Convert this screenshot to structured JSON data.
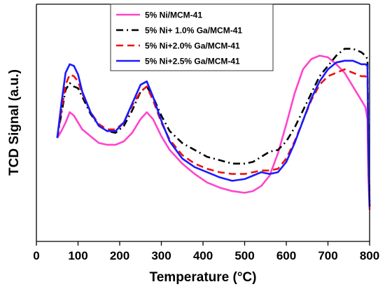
{
  "chart_data": {
    "type": "line",
    "xlabel": "Temperature (°C)",
    "ylabel": "TCD Signal (a.u.)",
    "xlim": [
      0,
      800
    ],
    "xticks": [
      0,
      100,
      200,
      300,
      400,
      500,
      600,
      700,
      800
    ],
    "ylim": [
      0,
      1
    ],
    "yticks_labeled": false,
    "grid": false,
    "legend_position": "top-center",
    "series": [
      {
        "name": "5% Ni/MCM-41",
        "color": "#ff44cc",
        "dash": "solid",
        "x": [
          50,
          60,
          70,
          80,
          90,
          100,
          110,
          130,
          150,
          170,
          190,
          210,
          230,
          250,
          265,
          280,
          300,
          320,
          350,
          380,
          410,
          440,
          470,
          500,
          520,
          540,
          560,
          580,
          600,
          620,
          640,
          660,
          680,
          700,
          720,
          740,
          760,
          780,
          790,
          795,
          797,
          800
        ],
        "y": [
          0.42,
          0.46,
          0.51,
          0.57,
          0.55,
          0.51,
          0.47,
          0.43,
          0.39,
          0.38,
          0.38,
          0.4,
          0.45,
          0.53,
          0.57,
          0.53,
          0.43,
          0.35,
          0.27,
          0.21,
          0.16,
          0.13,
          0.11,
          0.1,
          0.11,
          0.14,
          0.2,
          0.33,
          0.5,
          0.68,
          0.82,
          0.88,
          0.9,
          0.89,
          0.85,
          0.8,
          0.72,
          0.64,
          0.6,
          0.53,
          0.2,
          0.0
        ]
      },
      {
        "name": "5% Ni+ 1.0% Ga/MCM-41",
        "color": "#000000",
        "dash": "dashdot",
        "x": [
          50,
          60,
          70,
          80,
          90,
          100,
          110,
          130,
          150,
          170,
          190,
          210,
          230,
          250,
          265,
          280,
          300,
          320,
          350,
          380,
          410,
          440,
          470,
          500,
          520,
          540,
          560,
          580,
          600,
          620,
          640,
          660,
          680,
          700,
          720,
          740,
          760,
          780,
          790,
          795,
          797,
          800
        ],
        "y": [
          0.42,
          0.56,
          0.7,
          0.74,
          0.72,
          0.71,
          0.66,
          0.56,
          0.49,
          0.46,
          0.45,
          0.49,
          0.58,
          0.69,
          0.72,
          0.66,
          0.55,
          0.46,
          0.39,
          0.35,
          0.31,
          0.29,
          0.27,
          0.27,
          0.28,
          0.31,
          0.34,
          0.35,
          0.4,
          0.48,
          0.58,
          0.68,
          0.78,
          0.84,
          0.9,
          0.94,
          0.94,
          0.92,
          0.9,
          0.88,
          0.4,
          0.05
        ]
      },
      {
        "name": "5% Ni+2.0% Ga/MCM-41",
        "color": "#ee1111",
        "dash": "dashed",
        "x": [
          50,
          60,
          70,
          80,
          90,
          100,
          110,
          130,
          150,
          170,
          190,
          210,
          230,
          250,
          265,
          280,
          300,
          320,
          350,
          380,
          410,
          440,
          470,
          500,
          520,
          540,
          560,
          580,
          600,
          620,
          640,
          660,
          680,
          700,
          720,
          740,
          760,
          780,
          790,
          795,
          797,
          800
        ],
        "y": [
          0.42,
          0.58,
          0.73,
          0.79,
          0.78,
          0.75,
          0.68,
          0.57,
          0.5,
          0.47,
          0.47,
          0.51,
          0.61,
          0.69,
          0.72,
          0.64,
          0.51,
          0.41,
          0.32,
          0.27,
          0.24,
          0.22,
          0.21,
          0.21,
          0.22,
          0.23,
          0.23,
          0.24,
          0.3,
          0.4,
          0.52,
          0.64,
          0.73,
          0.78,
          0.8,
          0.82,
          0.8,
          0.78,
          0.78,
          0.77,
          0.35,
          0.02
        ]
      },
      {
        "name": "5% Ni+2.5% Ga/MCM-41",
        "color": "#1a1aff",
        "dash": "solid",
        "x": [
          50,
          60,
          70,
          80,
          90,
          100,
          110,
          130,
          150,
          170,
          190,
          210,
          230,
          250,
          265,
          280,
          300,
          320,
          350,
          380,
          410,
          440,
          470,
          500,
          520,
          540,
          560,
          580,
          600,
          620,
          640,
          660,
          680,
          700,
          720,
          740,
          760,
          780,
          790,
          795,
          797,
          800
        ],
        "y": [
          0.42,
          0.62,
          0.8,
          0.85,
          0.84,
          0.79,
          0.69,
          0.57,
          0.49,
          0.46,
          0.46,
          0.51,
          0.62,
          0.73,
          0.75,
          0.66,
          0.52,
          0.4,
          0.3,
          0.25,
          0.22,
          0.19,
          0.17,
          0.18,
          0.2,
          0.22,
          0.21,
          0.22,
          0.28,
          0.39,
          0.52,
          0.65,
          0.75,
          0.82,
          0.86,
          0.87,
          0.87,
          0.85,
          0.85,
          0.84,
          0.35,
          0.02
        ]
      }
    ]
  }
}
